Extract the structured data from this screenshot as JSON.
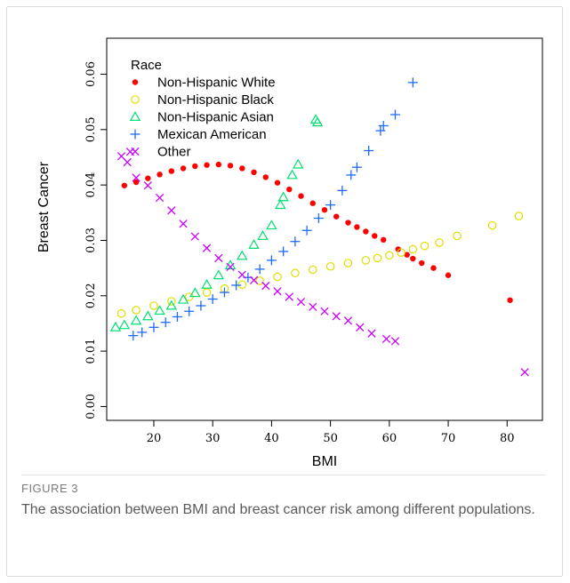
{
  "figure": {
    "label": "FIGURE 3",
    "caption": "The association between BMI and breast cancer risk among different populations."
  },
  "chart_data": {
    "type": "scatter",
    "xlabel": "BMI",
    "ylabel": "Breast Cancer",
    "xlim": [
      12,
      86
    ],
    "ylim": [
      -0.0025,
      0.0665
    ],
    "xticks": [
      20,
      30,
      40,
      50,
      60,
      70,
      80
    ],
    "yticks": [
      0.0,
      0.01,
      0.02,
      0.03,
      0.04,
      0.05,
      0.06
    ],
    "ytick_labels": [
      "0.00",
      "0.01",
      "0.02",
      "0.03",
      "0.04",
      "0.05",
      "0.06"
    ],
    "legend": {
      "title": "Race",
      "placement": "top-left"
    },
    "series": [
      {
        "name": "Non-Hispanic White",
        "marker": "circle-filled",
        "color": "#ff0000",
        "x": [
          15.0,
          17.0,
          19.0,
          21.0,
          23.0,
          25.0,
          27.0,
          29.0,
          31.0,
          33.0,
          35.0,
          37.0,
          39.0,
          41.0,
          43.0,
          45.0,
          47.0,
          49.0,
          51.0,
          53.0,
          54.5,
          56.0,
          57.5,
          59.0,
          61.5,
          63.0,
          64.0,
          65.5,
          67.5,
          70.0,
          80.5
        ],
        "y": [
          0.0399,
          0.0405,
          0.0412,
          0.0419,
          0.0425,
          0.043,
          0.0434,
          0.0436,
          0.0437,
          0.0435,
          0.043,
          0.0423,
          0.0414,
          0.0404,
          0.0392,
          0.038,
          0.0367,
          0.0355,
          0.0343,
          0.0332,
          0.0324,
          0.0316,
          0.0308,
          0.0301,
          0.0284,
          0.0274,
          0.0267,
          0.0259,
          0.025,
          0.0237,
          0.0192
        ]
      },
      {
        "name": "Non-Hispanic Black",
        "marker": "circle-open",
        "color": "#dede00",
        "x": [
          14.5,
          17.0,
          20.0,
          23.0,
          26.0,
          29.0,
          32.0,
          35.0,
          38.0,
          41.0,
          44.0,
          47.0,
          50.0,
          53.0,
          56.0,
          58.0,
          60.0,
          62.0,
          64.0,
          66.0,
          68.5,
          71.5,
          77.5,
          82.0
        ],
        "y": [
          0.0168,
          0.0174,
          0.0182,
          0.019,
          0.0198,
          0.0206,
          0.0213,
          0.022,
          0.0227,
          0.0234,
          0.0241,
          0.0247,
          0.0253,
          0.0259,
          0.0264,
          0.0268,
          0.0273,
          0.0278,
          0.0284,
          0.029,
          0.0296,
          0.0308,
          0.0327,
          0.0344
        ]
      },
      {
        "name": "Non-Hispanic Asian",
        "marker": "triangle-open",
        "color": "#00e070",
        "x": [
          13.5,
          15.0,
          17.0,
          19.0,
          21.0,
          23.0,
          25.0,
          27.0,
          29.0,
          31.0,
          33.0,
          35.0,
          37.0,
          38.5,
          40.0,
          41.5,
          42.0,
          43.5,
          44.5,
          47.5,
          47.8
        ],
        "y": [
          0.0143,
          0.0147,
          0.0155,
          0.0163,
          0.0173,
          0.0182,
          0.0193,
          0.0205,
          0.022,
          0.0237,
          0.0255,
          0.0272,
          0.0292,
          0.0308,
          0.0327,
          0.0364,
          0.0378,
          0.0418,
          0.0437,
          0.0518,
          0.0513
        ]
      },
      {
        "name": "Mexican American",
        "marker": "plus",
        "color": "#1e6bff",
        "x": [
          16.5,
          18.0,
          20.0,
          22.0,
          24.0,
          26.0,
          28.0,
          30.0,
          32.0,
          34.0,
          36.0,
          38.0,
          40.0,
          42.0,
          44.0,
          46.0,
          48.0,
          50.0,
          52.0,
          53.5,
          54.5,
          56.5,
          58.5,
          59.0,
          61.0,
          64.0
        ],
        "y": [
          0.0128,
          0.0134,
          0.0143,
          0.0152,
          0.0162,
          0.0172,
          0.0182,
          0.0194,
          0.0206,
          0.0219,
          0.0233,
          0.0248,
          0.0264,
          0.028,
          0.0298,
          0.0318,
          0.034,
          0.0364,
          0.039,
          0.0418,
          0.0432,
          0.0462,
          0.0498,
          0.0507,
          0.0527,
          0.0585
        ]
      },
      {
        "name": "Other",
        "marker": "cross",
        "color": "#cc00ff",
        "x": [
          14.5,
          15.5,
          16.0,
          17.0,
          19.0,
          21.0,
          23.0,
          25.0,
          27.0,
          29.0,
          31.0,
          33.0,
          35.0,
          37.0,
          39.0,
          41.0,
          43.0,
          45.0,
          47.0,
          49.0,
          51.0,
          53.0,
          55.0,
          57.0,
          59.5,
          61.0,
          83.0
        ],
        "y": [
          0.0452,
          0.0441,
          0.046,
          0.0413,
          0.0399,
          0.0377,
          0.0354,
          0.033,
          0.0307,
          0.0286,
          0.0268,
          0.0252,
          0.0238,
          0.0228,
          0.0218,
          0.0208,
          0.0198,
          0.0189,
          0.018,
          0.0172,
          0.0163,
          0.0155,
          0.0143,
          0.0132,
          0.0122,
          0.0118,
          0.0062
        ]
      }
    ]
  }
}
